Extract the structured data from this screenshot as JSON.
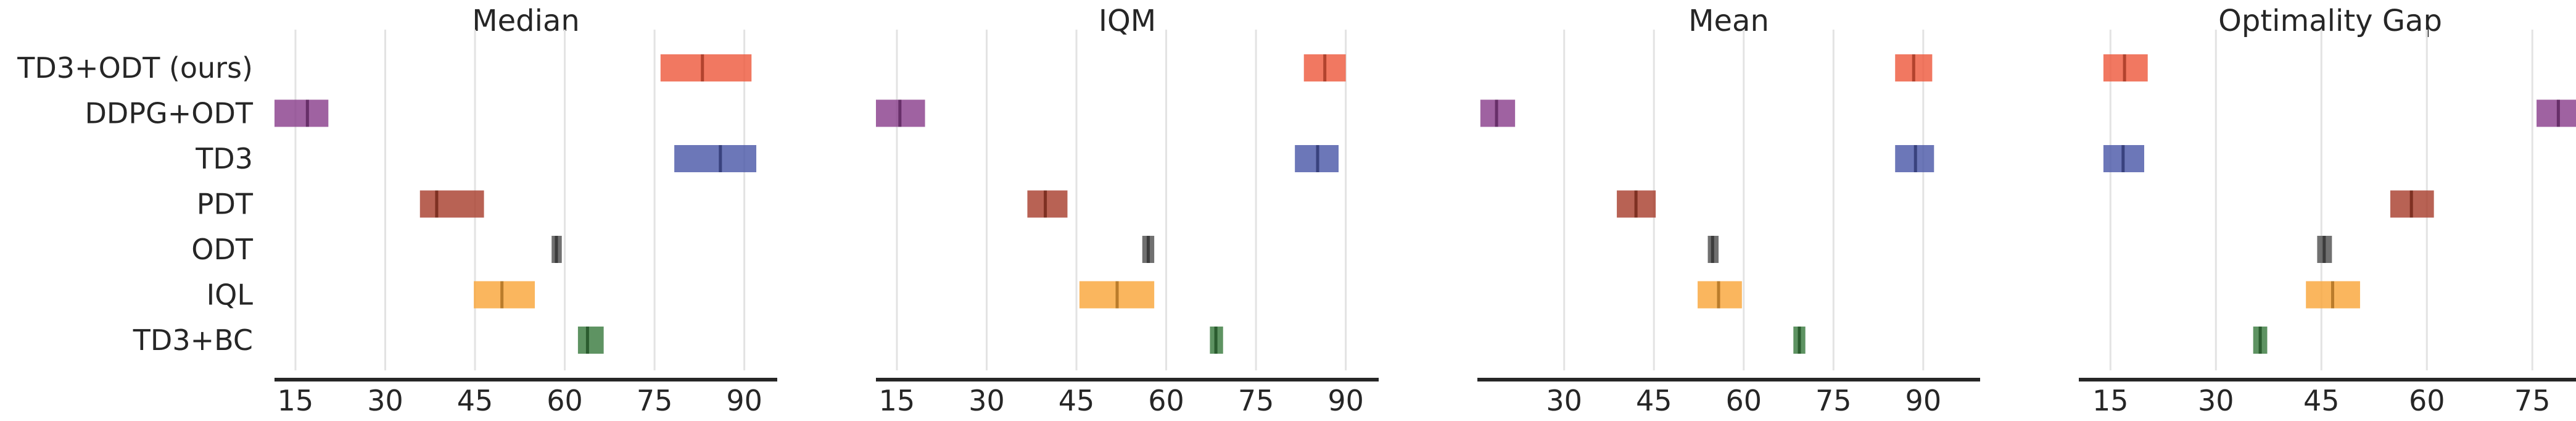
{
  "chart_data": {
    "type": "interval",
    "algorithms": [
      "TD3+ODT (ours)",
      "DDPG+ODT",
      "TD3",
      "PDT",
      "ODT",
      "IQL",
      "TD3+BC"
    ],
    "colors": {
      "TD3+ODT (ours)": "#EE5A3E",
      "DDPG+ODT": "#8A3F8C",
      "TD3": "#4C59A8",
      "PDT": "#A8402E",
      "ODT": "#505050",
      "IQL": "#F9A63A",
      "TD3+BC": "#3A7B3F"
    },
    "panels": [
      {
        "title": "Median",
        "xlim": [
          11.5,
          95.5
        ],
        "xticks": [
          "15",
          "30",
          "45",
          "60",
          "75",
          "90"
        ],
        "tick_values": [
          15,
          30,
          45,
          60,
          75,
          90
        ],
        "intervals": [
          {
            "algorithm": "TD3+ODT (ours)",
            "low": 76.0,
            "high": 91.2,
            "point": 83.0
          },
          {
            "algorithm": "DDPG+ODT",
            "low": 11.5,
            "high": 20.5,
            "point": 17.0
          },
          {
            "algorithm": "TD3",
            "low": 78.3,
            "high": 92.0,
            "point": 86.0
          },
          {
            "algorithm": "PDT",
            "low": 35.8,
            "high": 46.5,
            "point": 38.6
          },
          {
            "algorithm": "ODT",
            "low": 57.8,
            "high": 59.5,
            "point": 58.6
          },
          {
            "algorithm": "IQL",
            "low": 44.8,
            "high": 55.0,
            "point": 49.5
          },
          {
            "algorithm": "TD3+BC",
            "low": 62.2,
            "high": 66.5,
            "point": 63.8
          }
        ]
      },
      {
        "title": "IQM",
        "xlim": [
          11.5,
          95.5
        ],
        "xticks": [
          "15",
          "30",
          "45",
          "60",
          "75",
          "90"
        ],
        "tick_values": [
          15,
          30,
          45,
          60,
          75,
          90
        ],
        "intervals": [
          {
            "algorithm": "TD3+ODT (ours)",
            "low": 83.0,
            "high": 90.0,
            "point": 86.5
          },
          {
            "algorithm": "DDPG+ODT",
            "low": 11.5,
            "high": 19.7,
            "point": 15.5
          },
          {
            "algorithm": "TD3",
            "low": 81.5,
            "high": 88.8,
            "point": 85.3
          },
          {
            "algorithm": "PDT",
            "low": 36.8,
            "high": 43.5,
            "point": 39.8
          },
          {
            "algorithm": "ODT",
            "low": 56.0,
            "high": 58.0,
            "point": 57.0
          },
          {
            "algorithm": "IQL",
            "low": 45.5,
            "high": 58.0,
            "point": 51.8
          },
          {
            "algorithm": "TD3+BC",
            "low": 67.3,
            "high": 69.5,
            "point": 68.3
          }
        ]
      },
      {
        "title": "Mean",
        "xlim": [
          15.5,
          99.5
        ],
        "xticks": [
          "30",
          "45",
          "60",
          "75",
          "90"
        ],
        "tick_values": [
          30,
          45,
          60,
          75,
          90
        ],
        "intervals": [
          {
            "algorithm": "TD3+ODT (ours)",
            "low": 85.3,
            "high": 91.5,
            "point": 88.4
          },
          {
            "algorithm": "DDPG+ODT",
            "low": 16.0,
            "high": 21.8,
            "point": 18.7
          },
          {
            "algorithm": "TD3",
            "low": 85.3,
            "high": 91.8,
            "point": 88.7
          },
          {
            "algorithm": "PDT",
            "low": 38.8,
            "high": 45.3,
            "point": 42.0
          },
          {
            "algorithm": "ODT",
            "low": 54.0,
            "high": 55.8,
            "point": 54.8
          },
          {
            "algorithm": "IQL",
            "low": 52.3,
            "high": 59.7,
            "point": 55.8
          },
          {
            "algorithm": "TD3+BC",
            "low": 68.3,
            "high": 70.3,
            "point": 69.3
          }
        ]
      },
      {
        "title": "Optimality Gap",
        "xlim": [
          10.5,
          82.0
        ],
        "xticks": [
          "15",
          "30",
          "45",
          "60",
          "75"
        ],
        "tick_values": [
          15,
          30,
          45,
          60,
          75
        ],
        "intervals": [
          {
            "algorithm": "TD3+ODT (ours)",
            "low": 14.0,
            "high": 20.3,
            "point": 17.0
          },
          {
            "algorithm": "DDPG+ODT",
            "low": 75.6,
            "high": 82.0,
            "point": 78.7
          },
          {
            "algorithm": "TD3",
            "low": 14.0,
            "high": 19.8,
            "point": 16.8
          },
          {
            "algorithm": "PDT",
            "low": 54.8,
            "high": 61.0,
            "point": 57.8
          },
          {
            "algorithm": "ODT",
            "low": 44.4,
            "high": 46.5,
            "point": 45.4
          },
          {
            "algorithm": "IQL",
            "low": 42.8,
            "high": 50.5,
            "point": 46.6
          },
          {
            "algorithm": "TD3+BC",
            "low": 35.3,
            "high": 37.3,
            "point": 36.3
          }
        ]
      }
    ],
    "grid": "vertical"
  }
}
